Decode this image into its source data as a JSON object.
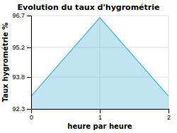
{
  "chart_data": {
    "type": "area",
    "title": "Evolution du taux d'hygrométrie",
    "xlabel": "heure par heure",
    "ylabel": "Taux hygrométrie %",
    "x": [
      0,
      1,
      2
    ],
    "values": [
      92.9,
      96.6,
      92.9
    ],
    "color": "#66bbdd",
    "xlim": [
      0,
      2
    ],
    "ylim": [
      92.3,
      96.7
    ],
    "xticks": [
      0,
      1,
      2
    ],
    "yticks": [
      92.3,
      93.8,
      95.2,
      96.7
    ],
    "grid": true
  }
}
